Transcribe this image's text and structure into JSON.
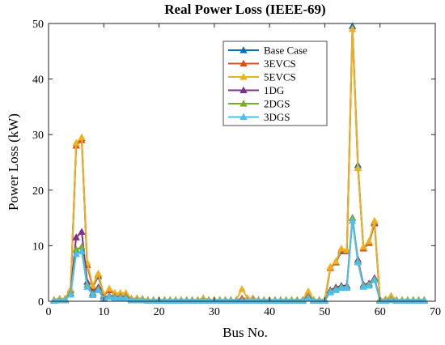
{
  "chart_data": {
    "type": "line",
    "title": "Real Power Loss (IEEE-69)",
    "xlabel": "Bus No.",
    "ylabel": "Power Loss (kW)",
    "xlim": [
      0,
      70
    ],
    "ylim": [
      0,
      50
    ],
    "xticks": [
      "0",
      "10",
      "20",
      "30",
      "40",
      "50",
      "60",
      "70"
    ],
    "yticks": [
      "0",
      "10",
      "20",
      "30",
      "40",
      "50"
    ],
    "grid": false,
    "legend_position": "top-right",
    "x": [
      1,
      2,
      3,
      4,
      5,
      6,
      7,
      8,
      9,
      10,
      11,
      12,
      13,
      14,
      15,
      16,
      17,
      18,
      19,
      20,
      21,
      22,
      23,
      24,
      25,
      26,
      27,
      28,
      29,
      30,
      31,
      32,
      33,
      34,
      35,
      36,
      37,
      38,
      39,
      40,
      41,
      42,
      43,
      44,
      45,
      46,
      47,
      48,
      49,
      50,
      51,
      52,
      53,
      54,
      55,
      56,
      57,
      58,
      59,
      60,
      61,
      62,
      63,
      64,
      65,
      66,
      67,
      68
    ],
    "series": [
      {
        "name": "Base Case",
        "color": "#0072BD",
        "values": [
          0.1,
          0.3,
          0.3,
          2.0,
          28.0,
          29.4,
          6.5,
          2.5,
          4.5,
          1.0,
          2.0,
          1.2,
          1.2,
          1.2,
          0.3,
          0.4,
          0.3,
          0.1,
          0.1,
          0.1,
          0.1,
          0.1,
          0.1,
          0.1,
          0.1,
          0.1,
          0.1,
          0.1,
          0.1,
          0.1,
          0.1,
          0.1,
          0.1,
          0.1,
          0.1,
          0.1,
          0.1,
          0.1,
          0.1,
          0.1,
          0.1,
          0.1,
          0.1,
          0.1,
          0.1,
          0.1,
          1.5,
          0.2,
          0.1,
          0.1,
          6.0,
          7.0,
          9.0,
          9.0,
          49.5,
          24.5,
          9.5,
          10.5,
          14.0,
          0.2,
          0.3,
          0.8,
          0.1,
          0.1,
          0.1,
          0.1,
          0.1,
          0.1
        ]
      },
      {
        "name": "3EVCS",
        "color": "#D95319",
        "values": [
          0.2,
          0.4,
          0.4,
          2.0,
          28.0,
          29.0,
          6.5,
          2.5,
          4.8,
          1.0,
          2.0,
          1.3,
          1.3,
          1.3,
          0.4,
          0.5,
          0.4,
          0.2,
          0.2,
          0.2,
          0.2,
          0.2,
          0.2,
          0.2,
          0.2,
          0.2,
          0.2,
          0.5,
          0.2,
          0.2,
          0.2,
          0.2,
          0.2,
          0.2,
          0.5,
          0.5,
          0.5,
          0.2,
          0.2,
          0.2,
          0.2,
          0.2,
          0.2,
          0.2,
          0.2,
          0.2,
          1.6,
          0.2,
          0.2,
          0.2,
          6.0,
          7.0,
          9.2,
          9.0,
          49.0,
          24.0,
          9.5,
          10.5,
          14.2,
          0.3,
          0.3,
          0.9,
          0.2,
          0.2,
          0.2,
          0.2,
          0.2,
          0.2
        ]
      },
      {
        "name": "5EVCS",
        "color": "#EDB120",
        "values": [
          0.3,
          0.5,
          0.5,
          2.2,
          28.5,
          29.5,
          7.0,
          2.8,
          5.0,
          1.2,
          2.3,
          1.5,
          1.5,
          1.5,
          0.5,
          0.6,
          0.5,
          0.3,
          0.3,
          0.3,
          0.3,
          0.3,
          0.3,
          0.3,
          0.3,
          0.3,
          0.3,
          0.6,
          0.3,
          0.3,
          0.3,
          0.3,
          0.3,
          0.3,
          2.2,
          0.6,
          0.3,
          0.3,
          0.3,
          0.3,
          0.3,
          0.3,
          0.3,
          0.3,
          0.3,
          0.3,
          1.8,
          0.3,
          0.3,
          0.3,
          6.2,
          7.2,
          9.5,
          9.2,
          49.0,
          24.0,
          9.8,
          10.8,
          14.5,
          0.4,
          0.4,
          1.0,
          0.3,
          0.3,
          0.3,
          0.3,
          0.3,
          0.3
        ]
      },
      {
        "name": "1DG",
        "color": "#7E2F8E",
        "values": [
          0.1,
          0.2,
          0.2,
          1.5,
          11.5,
          12.5,
          3.5,
          1.5,
          2.5,
          0.6,
          1.0,
          0.8,
          0.8,
          0.8,
          0.2,
          0.2,
          0.2,
          0.1,
          0.1,
          0.1,
          0.1,
          0.1,
          0.1,
          0.1,
          0.1,
          0.1,
          0.1,
          0.1,
          0.1,
          0.1,
          0.1,
          0.1,
          0.1,
          0.1,
          0.1,
          0.1,
          0.1,
          0.1,
          0.1,
          0.1,
          0.1,
          0.1,
          0.1,
          0.1,
          0.1,
          0.1,
          0.8,
          0.1,
          0.1,
          0.1,
          2.0,
          2.5,
          2.8,
          2.8,
          15.0,
          7.5,
          3.0,
          3.2,
          4.2,
          0.1,
          0.1,
          0.3,
          0.1,
          0.1,
          0.1,
          0.1,
          0.1,
          0.1
        ]
      },
      {
        "name": "2DGS",
        "color": "#77AC30",
        "values": [
          0.1,
          0.2,
          0.2,
          1.5,
          9.3,
          9.8,
          3.0,
          1.3,
          2.2,
          0.5,
          0.9,
          0.7,
          0.7,
          0.7,
          0.2,
          0.2,
          0.2,
          0.1,
          0.1,
          0.1,
          0.1,
          0.1,
          0.1,
          0.1,
          0.1,
          0.1,
          0.1,
          0.1,
          0.1,
          0.1,
          0.1,
          0.1,
          0.1,
          0.1,
          0.1,
          0.1,
          0.1,
          0.1,
          0.1,
          0.1,
          0.1,
          0.1,
          0.1,
          0.1,
          0.1,
          0.1,
          0.7,
          0.1,
          0.1,
          0.1,
          1.8,
          2.2,
          2.6,
          2.6,
          15.0,
          7.2,
          2.8,
          3.0,
          4.0,
          0.1,
          0.1,
          0.3,
          0.1,
          0.1,
          0.1,
          0.1,
          0.1,
          0.1
        ]
      },
      {
        "name": "3DGS",
        "color": "#4DBEEE",
        "values": [
          0.1,
          0.2,
          0.2,
          1.2,
          8.5,
          9.0,
          2.6,
          1.1,
          2.0,
          0.4,
          0.8,
          0.6,
          0.6,
          0.6,
          0.2,
          0.2,
          0.2,
          0.1,
          0.1,
          0.1,
          0.1,
          0.1,
          0.1,
          0.1,
          0.1,
          0.1,
          0.1,
          0.1,
          0.1,
          0.1,
          0.1,
          0.1,
          0.1,
          0.1,
          0.1,
          0.1,
          0.1,
          0.1,
          0.1,
          0.1,
          0.1,
          0.1,
          0.1,
          0.1,
          0.1,
          0.1,
          0.6,
          0.1,
          0.1,
          0.1,
          1.6,
          2.0,
          2.4,
          2.4,
          14.5,
          7.0,
          2.6,
          2.8,
          3.8,
          0.1,
          0.1,
          0.2,
          0.1,
          0.1,
          0.1,
          0.1,
          0.1,
          0.1
        ]
      }
    ]
  }
}
